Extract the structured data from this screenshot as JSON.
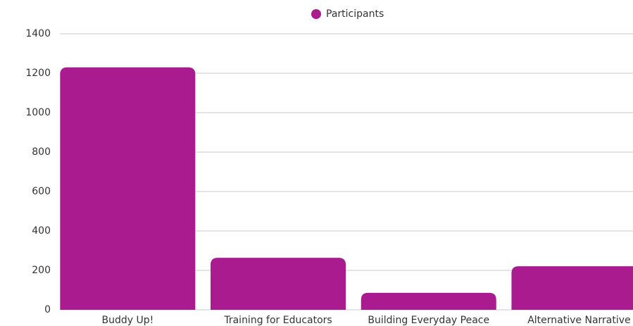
{
  "chart_data": {
    "type": "bar",
    "legend": "Participants",
    "categories": [
      "Buddy Up!",
      "Training for Educators",
      "Building Everyday Peace",
      "Alternative Narrative"
    ],
    "series": [
      {
        "name": "Participants",
        "color": "#a91b8e",
        "values": [
          1230,
          264,
          86,
          221
        ]
      }
    ],
    "ylim": [
      0,
      1400
    ],
    "yticks": [
      0,
      200,
      400,
      600,
      800,
      1000,
      1200,
      1400
    ],
    "grid": true
  }
}
